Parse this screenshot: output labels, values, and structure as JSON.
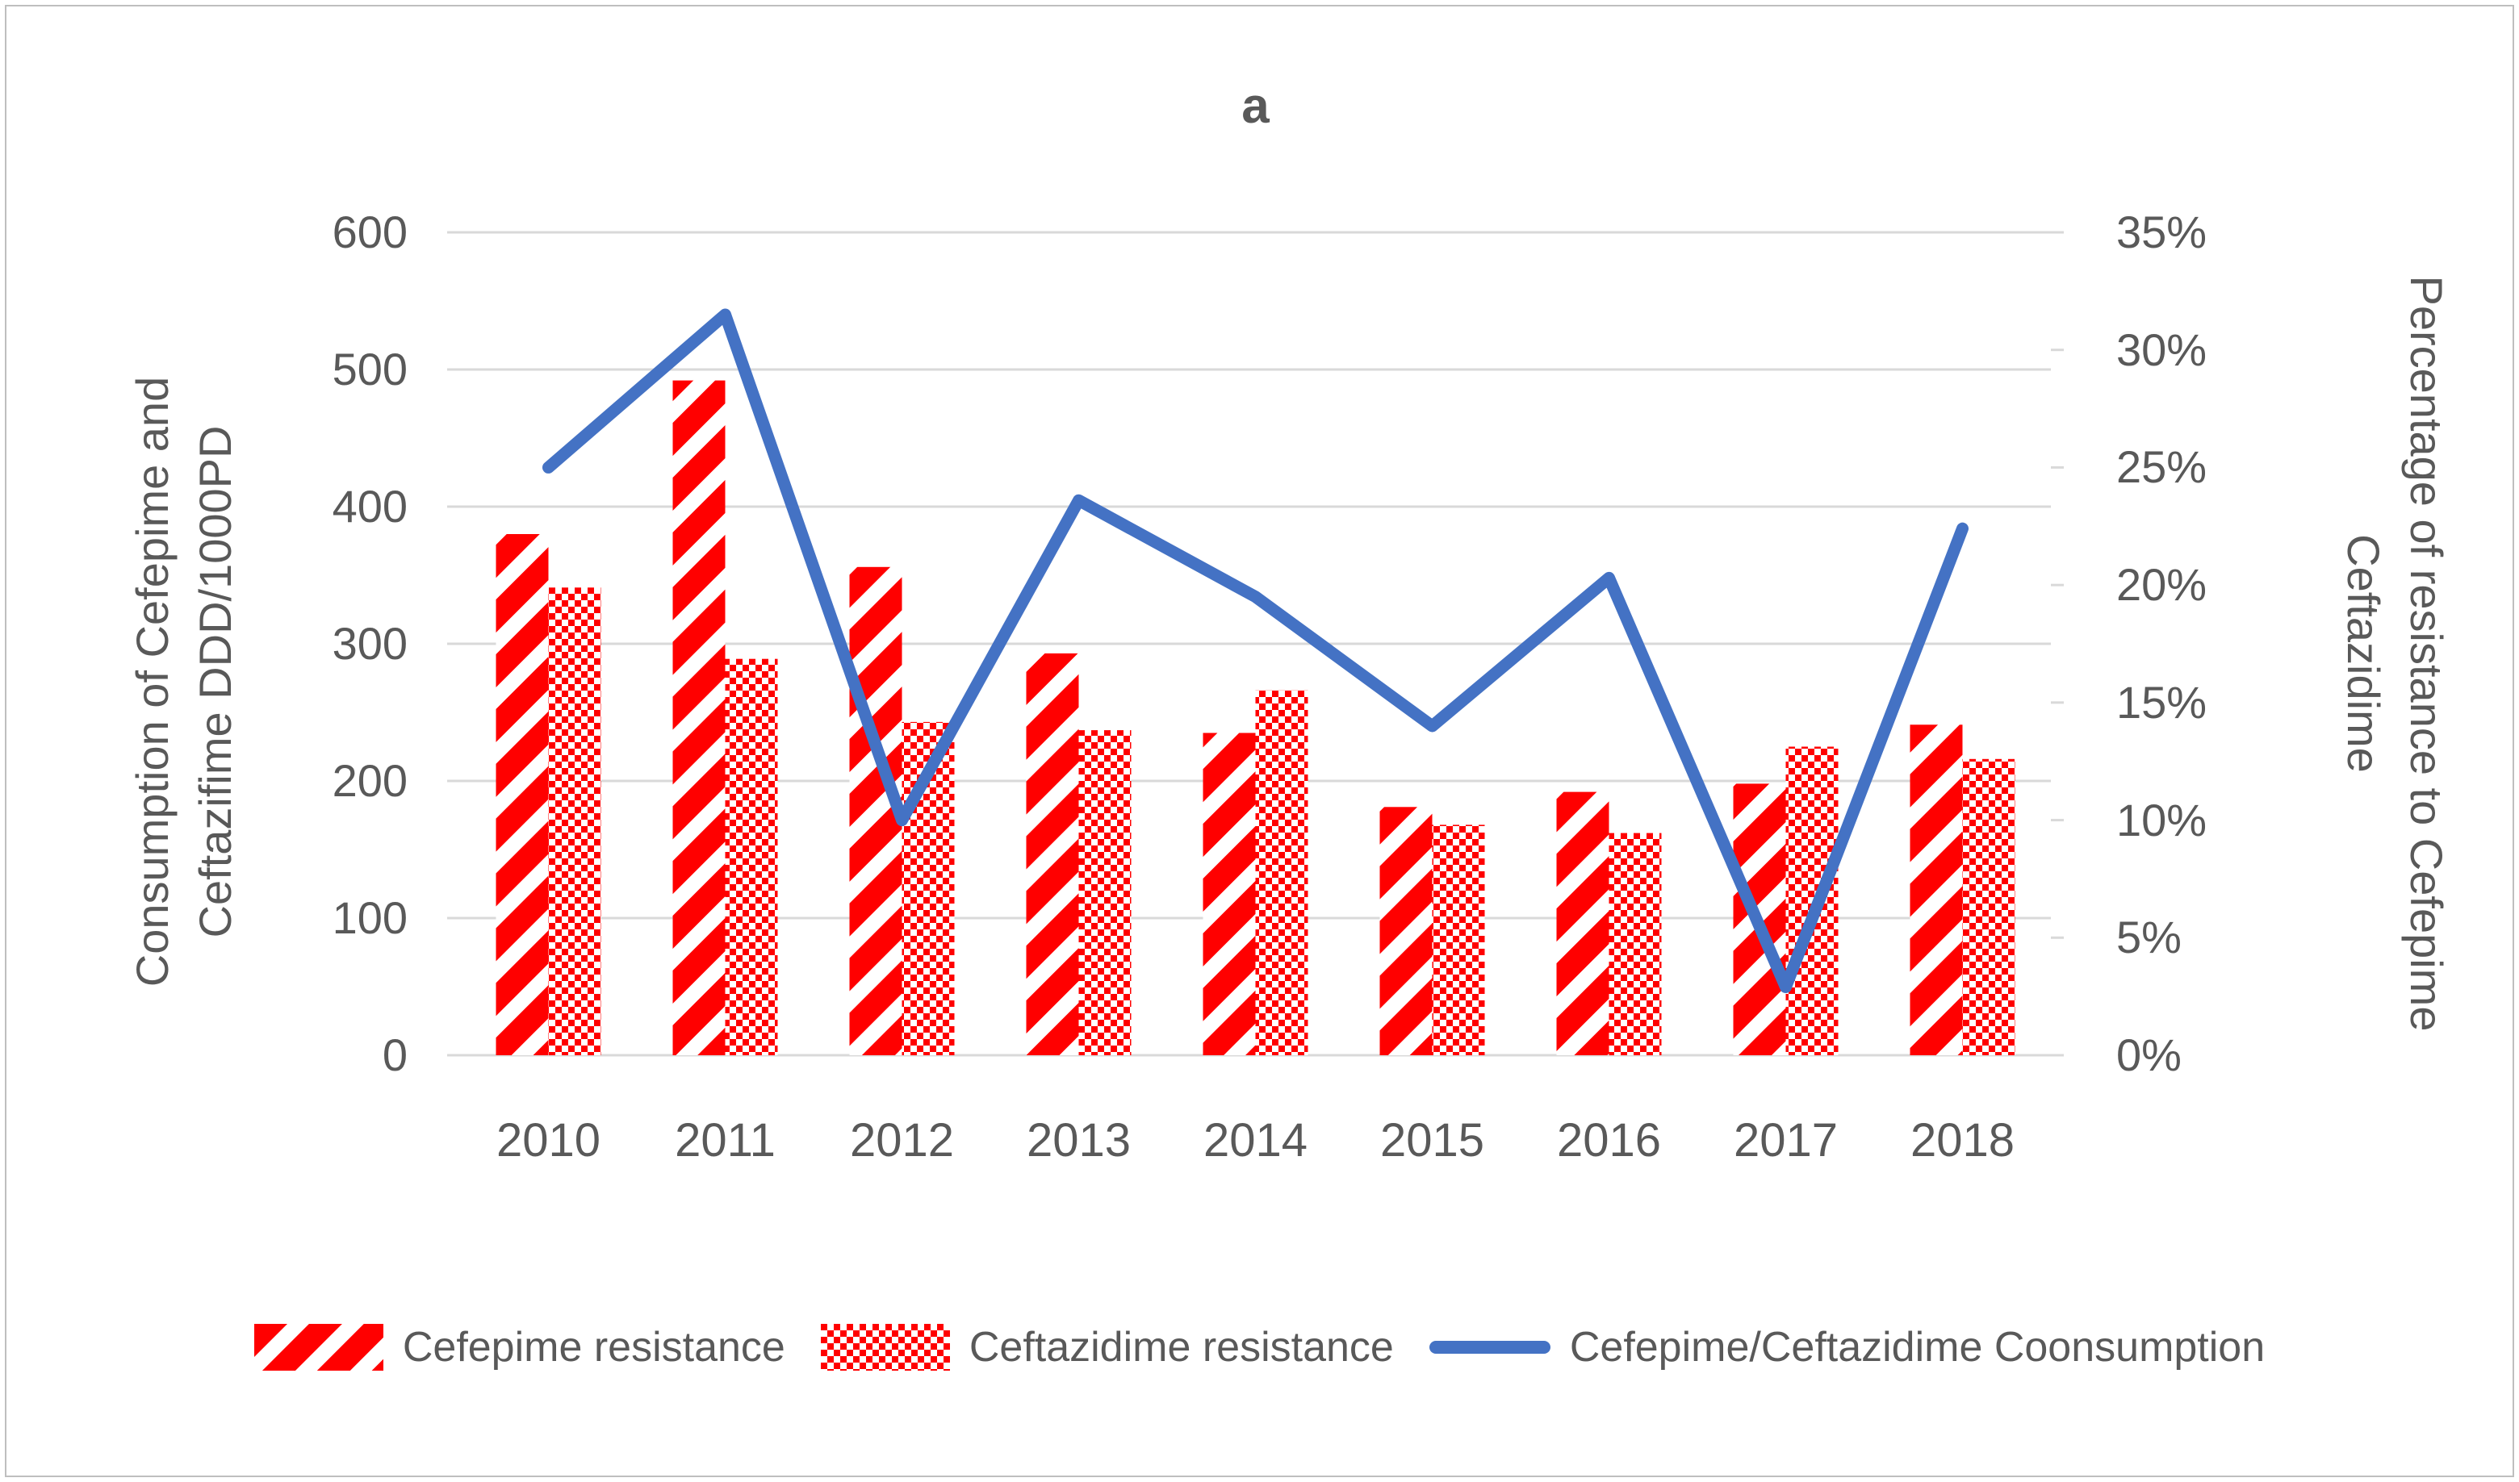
{
  "chart_data": {
    "type": "combo-bar-line",
    "title": "a",
    "categories": [
      "2010",
      "2011",
      "2012",
      "2013",
      "2014",
      "2015",
      "2016",
      "2017",
      "2018"
    ],
    "series": [
      {
        "name": "Cefepime resistance",
        "type": "bar",
        "pattern": "diagonal-stripe",
        "color": "#FF0000",
        "axis": "left",
        "values": [
          380,
          492,
          356,
          293,
          235,
          181,
          192,
          198,
          241
        ]
      },
      {
        "name": "Ceftazidime resistance",
        "type": "bar",
        "pattern": "checkerboard",
        "color": "#FF0000",
        "axis": "left",
        "values": [
          341,
          289,
          243,
          237,
          266,
          168,
          162,
          225,
          216
        ]
      },
      {
        "name": "Cefepime/Ceftazidime Coonsumption",
        "type": "line",
        "color": "#4472C4",
        "axis": "right",
        "values": [
          25,
          31.5,
          10,
          23.6,
          19.5,
          14,
          20.3,
          2.9,
          22.4
        ]
      }
    ],
    "left_axis": {
      "title_line1": "Consumption of Cefepime and",
      "title_line2": "Ceftazifime DDD/1000PD",
      "min": 0,
      "max": 600,
      "step": 100,
      "tick_labels": [
        "600",
        "500",
        "400",
        "300",
        "200",
        "100",
        "0"
      ]
    },
    "right_axis": {
      "title_line1": "Percentage of resistance to Cefepime",
      "title_line2": "Ceftazidime",
      "min_percent": 0,
      "max_percent": 35,
      "step_percent": 5,
      "tick_labels": [
        "35%",
        "30%",
        "25%",
        "20%",
        "15%",
        "10%",
        "5%",
        "0%"
      ]
    },
    "grid": "horizontal",
    "legend_position": "bottom",
    "colors": {
      "red": "#FF0000",
      "blue": "#4472C4",
      "gridline": "#D9D9D9",
      "text": "#595959",
      "border": "#BFBFBF"
    }
  }
}
